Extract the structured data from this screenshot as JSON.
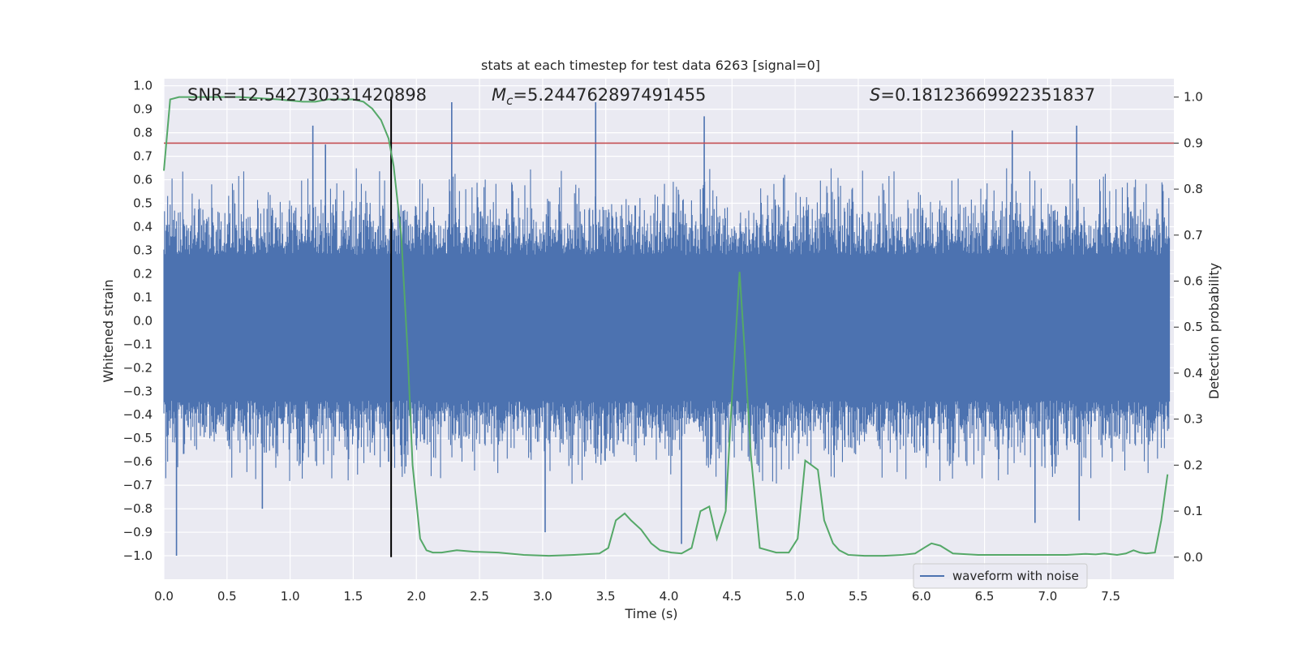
{
  "chart_data": {
    "type": "line",
    "title": "stats at each timestep for test data 6263 [signal=0]",
    "xlabel": "Time (s)",
    "ylabel_left": "Whitened strain",
    "ylabel_right": "Detection probability",
    "xlim": [
      0.0,
      8.0
    ],
    "ylim_left": [
      -1.1,
      1.03
    ],
    "ylim_right": [
      -0.048,
      1.04
    ],
    "grid": true,
    "x_ticks": [
      "0.0",
      "0.5",
      "1.0",
      "1.5",
      "2.0",
      "2.5",
      "3.0",
      "3.5",
      "4.0",
      "4.5",
      "5.0",
      "5.5",
      "6.0",
      "6.5",
      "7.0",
      "7.5"
    ],
    "y_left_ticks": [
      "1.0",
      "0.9",
      "0.8",
      "0.7",
      "0.6",
      "0.5",
      "0.4",
      "0.3",
      "0.2",
      "0.1",
      "0.0",
      "−0.1",
      "−0.2",
      "−0.3",
      "−0.4",
      "−0.5",
      "−0.6",
      "−0.7",
      "−0.8",
      "−0.9",
      "−1.0"
    ],
    "y_right_ticks": [
      "1.0",
      "0.9",
      "0.8",
      "0.7",
      "0.6",
      "0.5",
      "0.4",
      "0.3",
      "0.2",
      "0.1",
      "0.0"
    ],
    "annotations": {
      "snr": "SNR=12.542730331420898",
      "mc_symbol": "M",
      "mc_sub": "c",
      "mc_value": "=5.244762897491455",
      "s_symbol": "S",
      "s_value": "=0.18123669922351837"
    },
    "threshold_line": {
      "value": 0.9,
      "color": "#c44e52"
    },
    "marker_vline": {
      "x": 1.8,
      "color": "#000000"
    },
    "legend": {
      "label": "waveform with noise",
      "position": "lower right"
    },
    "series": [
      {
        "name": "waveform with noise",
        "axis": "left",
        "color": "#4c72b0",
        "style": "dense noise, approx. range -1.0 to 0.93",
        "peaks": [
          [
            0.1,
            -1.0
          ],
          [
            0.78,
            -0.8
          ],
          [
            1.18,
            0.83
          ],
          [
            1.28,
            0.75
          ],
          [
            1.78,
            -0.6
          ],
          [
            2.28,
            0.93
          ],
          [
            3.02,
            -0.9
          ],
          [
            3.42,
            0.93
          ],
          [
            4.1,
            -0.95
          ],
          [
            4.28,
            0.87
          ],
          [
            4.45,
            -0.8
          ],
          [
            6.72,
            0.81
          ],
          [
            6.9,
            -0.86
          ],
          [
            7.23,
            0.83
          ],
          [
            7.25,
            -0.85
          ]
        ]
      },
      {
        "name": "detection probability",
        "axis": "right",
        "color": "#55a868",
        "x": [
          0.0,
          0.05,
          0.12,
          0.3,
          0.6,
          0.9,
          1.1,
          1.2,
          1.3,
          1.4,
          1.5,
          1.58,
          1.65,
          1.72,
          1.78,
          1.82,
          1.88,
          1.93,
          1.97,
          2.03,
          2.08,
          2.13,
          2.2,
          2.32,
          2.45,
          2.65,
          2.85,
          3.05,
          3.25,
          3.45,
          3.52,
          3.58,
          3.65,
          3.7,
          3.78,
          3.86,
          3.93,
          4.02,
          4.1,
          4.18,
          4.25,
          4.32,
          4.38,
          4.45,
          4.5,
          4.56,
          4.6,
          4.65,
          4.72,
          4.85,
          4.95,
          5.02,
          5.08,
          5.13,
          5.18,
          5.23,
          5.3,
          5.35,
          5.42,
          5.55,
          5.7,
          5.85,
          5.95,
          6.02,
          6.08,
          6.15,
          6.25,
          6.45,
          6.7,
          6.95,
          7.15,
          7.3,
          7.38,
          7.45,
          7.55,
          7.62,
          7.68,
          7.73,
          7.78,
          7.85,
          7.9,
          7.95
        ],
        "y": [
          0.84,
          0.995,
          1.0,
          1.0,
          1.0,
          0.995,
          0.99,
          0.99,
          0.995,
          0.995,
          0.995,
          0.99,
          0.975,
          0.95,
          0.91,
          0.85,
          0.7,
          0.45,
          0.2,
          0.04,
          0.015,
          0.01,
          0.01,
          0.015,
          0.012,
          0.01,
          0.005,
          0.003,
          0.005,
          0.008,
          0.02,
          0.08,
          0.095,
          0.08,
          0.06,
          0.03,
          0.015,
          0.01,
          0.008,
          0.02,
          0.1,
          0.11,
          0.04,
          0.1,
          0.35,
          0.62,
          0.45,
          0.22,
          0.02,
          0.01,
          0.01,
          0.04,
          0.21,
          0.2,
          0.19,
          0.08,
          0.03,
          0.015,
          0.005,
          0.003,
          0.003,
          0.005,
          0.008,
          0.02,
          0.03,
          0.025,
          0.008,
          0.005,
          0.005,
          0.005,
          0.005,
          0.007,
          0.006,
          0.008,
          0.005,
          0.008,
          0.015,
          0.01,
          0.008,
          0.01,
          0.08,
          0.18
        ]
      }
    ]
  }
}
